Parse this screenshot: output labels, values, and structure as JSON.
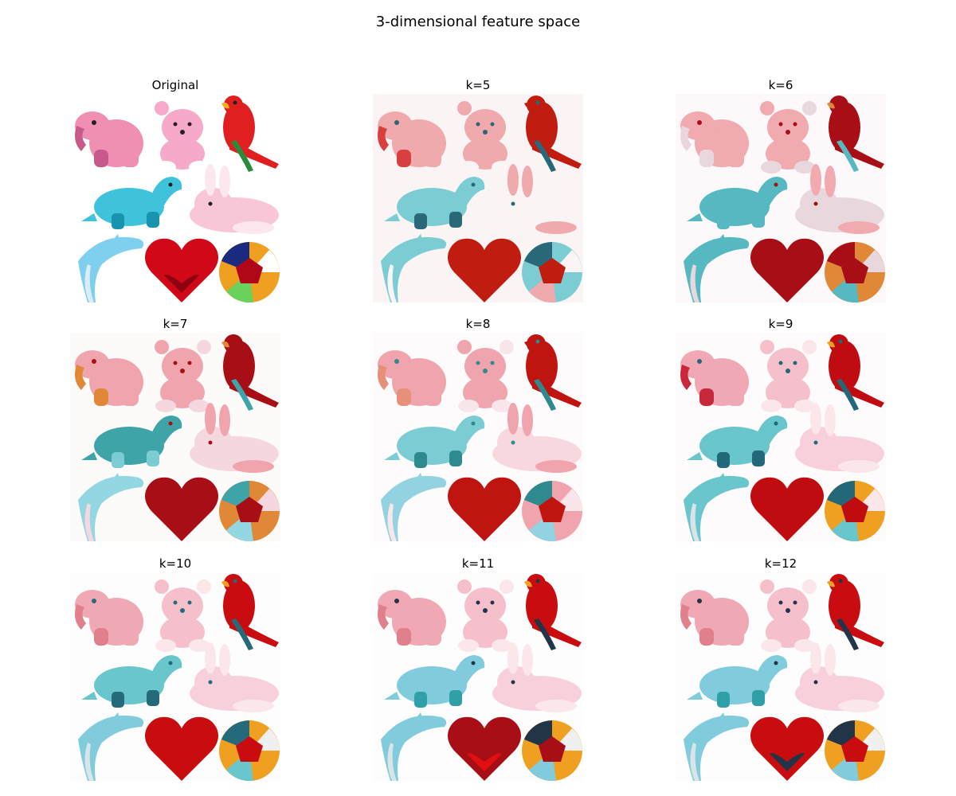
{
  "figure": {
    "title": "3-dimensional feature space"
  },
  "toy_names": [
    "elephant",
    "teddy-bear",
    "parrot",
    "dinosaur",
    "bunny",
    "dolphin",
    "heart",
    "ball"
  ],
  "panels": [
    {
      "title": "Original",
      "palette": {
        "bg": "#ffffff",
        "elephant": "#f08fb3",
        "elephant2": "#c75a8a",
        "bear": "#f6a9c8",
        "bear2": "#ffffff",
        "parrot": "#e02020",
        "parrot2": "#f0b020",
        "parrot3": "#2c8a3c",
        "dino": "#3fc2dc",
        "dino2": "#1894b0",
        "bunny": "#f8c6d6",
        "bunny2": "#fde7ee",
        "dolphin": "#7ed0ee",
        "dolphin2": "#dcecf4",
        "heart": "#d00818",
        "heart2": "#8c0010",
        "ball1": "#1a2a80",
        "ball2": "#b00818",
        "ball3": "#f0a020",
        "ball4": "#6ad25a",
        "ball5": "#ffffff",
        "eye": "#222222"
      }
    },
    {
      "title": "k=5",
      "palette": {
        "bg": "#fbf4f5",
        "elephant": "#f0a9ac",
        "elephant2": "#d84040",
        "bear": "#f0a9ac",
        "bear2": "#fbf4f5",
        "parrot": "#c01c10",
        "parrot2": "#c01c10",
        "parrot3": "#296878",
        "dino": "#7ccdd3",
        "dino2": "#296878",
        "bunny": "#fbf4f5",
        "bunny2": "#f0a9ac",
        "dolphin": "#7ccdd3",
        "dolphin2": "#fbf4f5",
        "heart": "#c01c10",
        "heart2": "#c01c10",
        "ball1": "#296878",
        "ball2": "#c01c10",
        "ball3": "#7ccdd3",
        "ball4": "#f0a9ac",
        "ball5": "#fbf4f5",
        "eye": "#296878"
      }
    },
    {
      "title": "k=6",
      "palette": {
        "bg": "#fdf9fa",
        "elephant": "#f0aab0",
        "elephant2": "#e8d8dd",
        "bear": "#f0aab0",
        "bear2": "#e8d8dd",
        "parrot": "#a80e16",
        "parrot2": "#e08838",
        "parrot3": "#56b8c0",
        "dino": "#56b8c0",
        "dino2": "#56b8c0",
        "bunny": "#e8d8dd",
        "bunny2": "#f0aab0",
        "dolphin": "#56b8c0",
        "dolphin2": "#e8d8dd",
        "heart": "#a80e16",
        "heart2": "#a80e16",
        "ball1": "#a80e16",
        "ball2": "#a80e16",
        "ball3": "#e08838",
        "ball4": "#56b8c0",
        "ball5": "#e8d8dd",
        "eye": "#a80e16"
      }
    },
    {
      "title": "k=7",
      "palette": {
        "bg": "#fdfbfa",
        "elephant": "#efa4ae",
        "elephant2": "#e08838",
        "bear": "#efa4ae",
        "bear2": "#f5d8df",
        "parrot": "#a80e16",
        "parrot2": "#e08838",
        "parrot3": "#3ea4a8",
        "dino": "#3ea4a8",
        "dino2": "#7ccdd3",
        "bunny": "#f5d8df",
        "bunny2": "#efa4ae",
        "dolphin": "#93d7e2",
        "dolphin2": "#f5d8df",
        "heart": "#a80e16",
        "heart2": "#a80e16",
        "ball1": "#3ea4a8",
        "ball2": "#a80e16",
        "ball3": "#e08838",
        "ball4": "#93d7e2",
        "ball5": "#f5d8df",
        "eye": "#a80e16"
      }
    },
    {
      "title": "k=8",
      "palette": {
        "bg": "#fdfbfb",
        "elephant": "#f0a4ae",
        "elephant2": "#e6907a",
        "bear": "#f0a4ae",
        "bear2": "#f8e6ea",
        "parrot": "#c01410",
        "parrot2": "#c01410",
        "parrot3": "#2e8a8e",
        "dino": "#7ccdd3",
        "dino2": "#2e8a8e",
        "bunny": "#f8d8df",
        "bunny2": "#f0a4ae",
        "dolphin": "#93d2e0",
        "dolphin2": "#f8e6ea",
        "heart": "#c01410",
        "heart2": "#c01410",
        "ball1": "#2e8a8e",
        "ball2": "#c01410",
        "ball3": "#f0a4ae",
        "ball4": "#93d2e0",
        "ball5": "#f8e6ea",
        "eye": "#2e8a8e"
      }
    },
    {
      "title": "k=9",
      "palette": {
        "bg": "#fdfbfb",
        "elephant": "#f0a8b4",
        "elephant2": "#c8283a",
        "bear": "#f5c0cc",
        "bear2": "#fbe6ea",
        "parrot": "#c00c10",
        "parrot2": "#f0a020",
        "parrot3": "#236878",
        "dino": "#6ac6cd",
        "dino2": "#236878",
        "bunny": "#f8d0dc",
        "bunny2": "#fbe6ea",
        "dolphin": "#6ac6cd",
        "dolphin2": "#d8e4e8",
        "heart": "#c00c10",
        "heart2": "#c00c10",
        "ball1": "#236878",
        "ball2": "#c00c10",
        "ball3": "#f0a020",
        "ball4": "#6ac6cd",
        "ball5": "#fbe6ea",
        "eye": "#236878"
      }
    },
    {
      "title": "k=10",
      "palette": {
        "bg": "#fefdfd",
        "elephant": "#f0a8b4",
        "elephant2": "#e0808c",
        "bear": "#f5c0cc",
        "bear2": "#fbe6ea",
        "parrot": "#c80c10",
        "parrot2": "#f0a020",
        "parrot3": "#256a7a",
        "dino": "#6ac6cd",
        "dino2": "#256a7a",
        "bunny": "#f8d0dc",
        "bunny2": "#fbe6ea",
        "dolphin": "#80ccdc",
        "dolphin2": "#d8e4e8",
        "heart": "#c80c10",
        "heart2": "#c80c10",
        "ball1": "#256a7a",
        "ball2": "#c80c10",
        "ball3": "#f0a020",
        "ball4": "#6ac6cd",
        "ball5": "#f0f0f0",
        "eye": "#256a7a"
      }
    },
    {
      "title": "k=11",
      "palette": {
        "bg": "#fefdfd",
        "elephant": "#f0a8b4",
        "elephant2": "#e0808c",
        "bear": "#f5c0cc",
        "bear2": "#fbe6ea",
        "parrot": "#c80c10",
        "parrot2": "#f0a020",
        "parrot3": "#223448",
        "dino": "#80ccdc",
        "dino2": "#30a0a8",
        "bunny": "#f8d0dc",
        "bunny2": "#fbe6ea",
        "dolphin": "#80ccdc",
        "dolphin2": "#d8e4e8",
        "heart": "#a80e16",
        "heart2": "#e01010",
        "ball1": "#223448",
        "ball2": "#a80e16",
        "ball3": "#f0a020",
        "ball4": "#80ccdc",
        "ball5": "#f0f0f0",
        "eye": "#223448"
      }
    },
    {
      "title": "k=12",
      "palette": {
        "bg": "#fefdfd",
        "elephant": "#f0a8b4",
        "elephant2": "#e0808c",
        "bear": "#f5c0cc",
        "bear2": "#fbe6ea",
        "parrot": "#c80c10",
        "parrot2": "#f0a020",
        "parrot3": "#223448",
        "dino": "#80ccdc",
        "dino2": "#30a0a8",
        "bunny": "#f8d0dc",
        "bunny2": "#fbe6ea",
        "dolphin": "#80ccdc",
        "dolphin2": "#d8e4e8",
        "heart": "#c80c10",
        "heart2": "#223448",
        "ball1": "#223448",
        "ball2": "#c80c10",
        "ball3": "#f0a020",
        "ball4": "#80ccdc",
        "ball5": "#f0f0f0",
        "eye": "#223448"
      }
    }
  ]
}
